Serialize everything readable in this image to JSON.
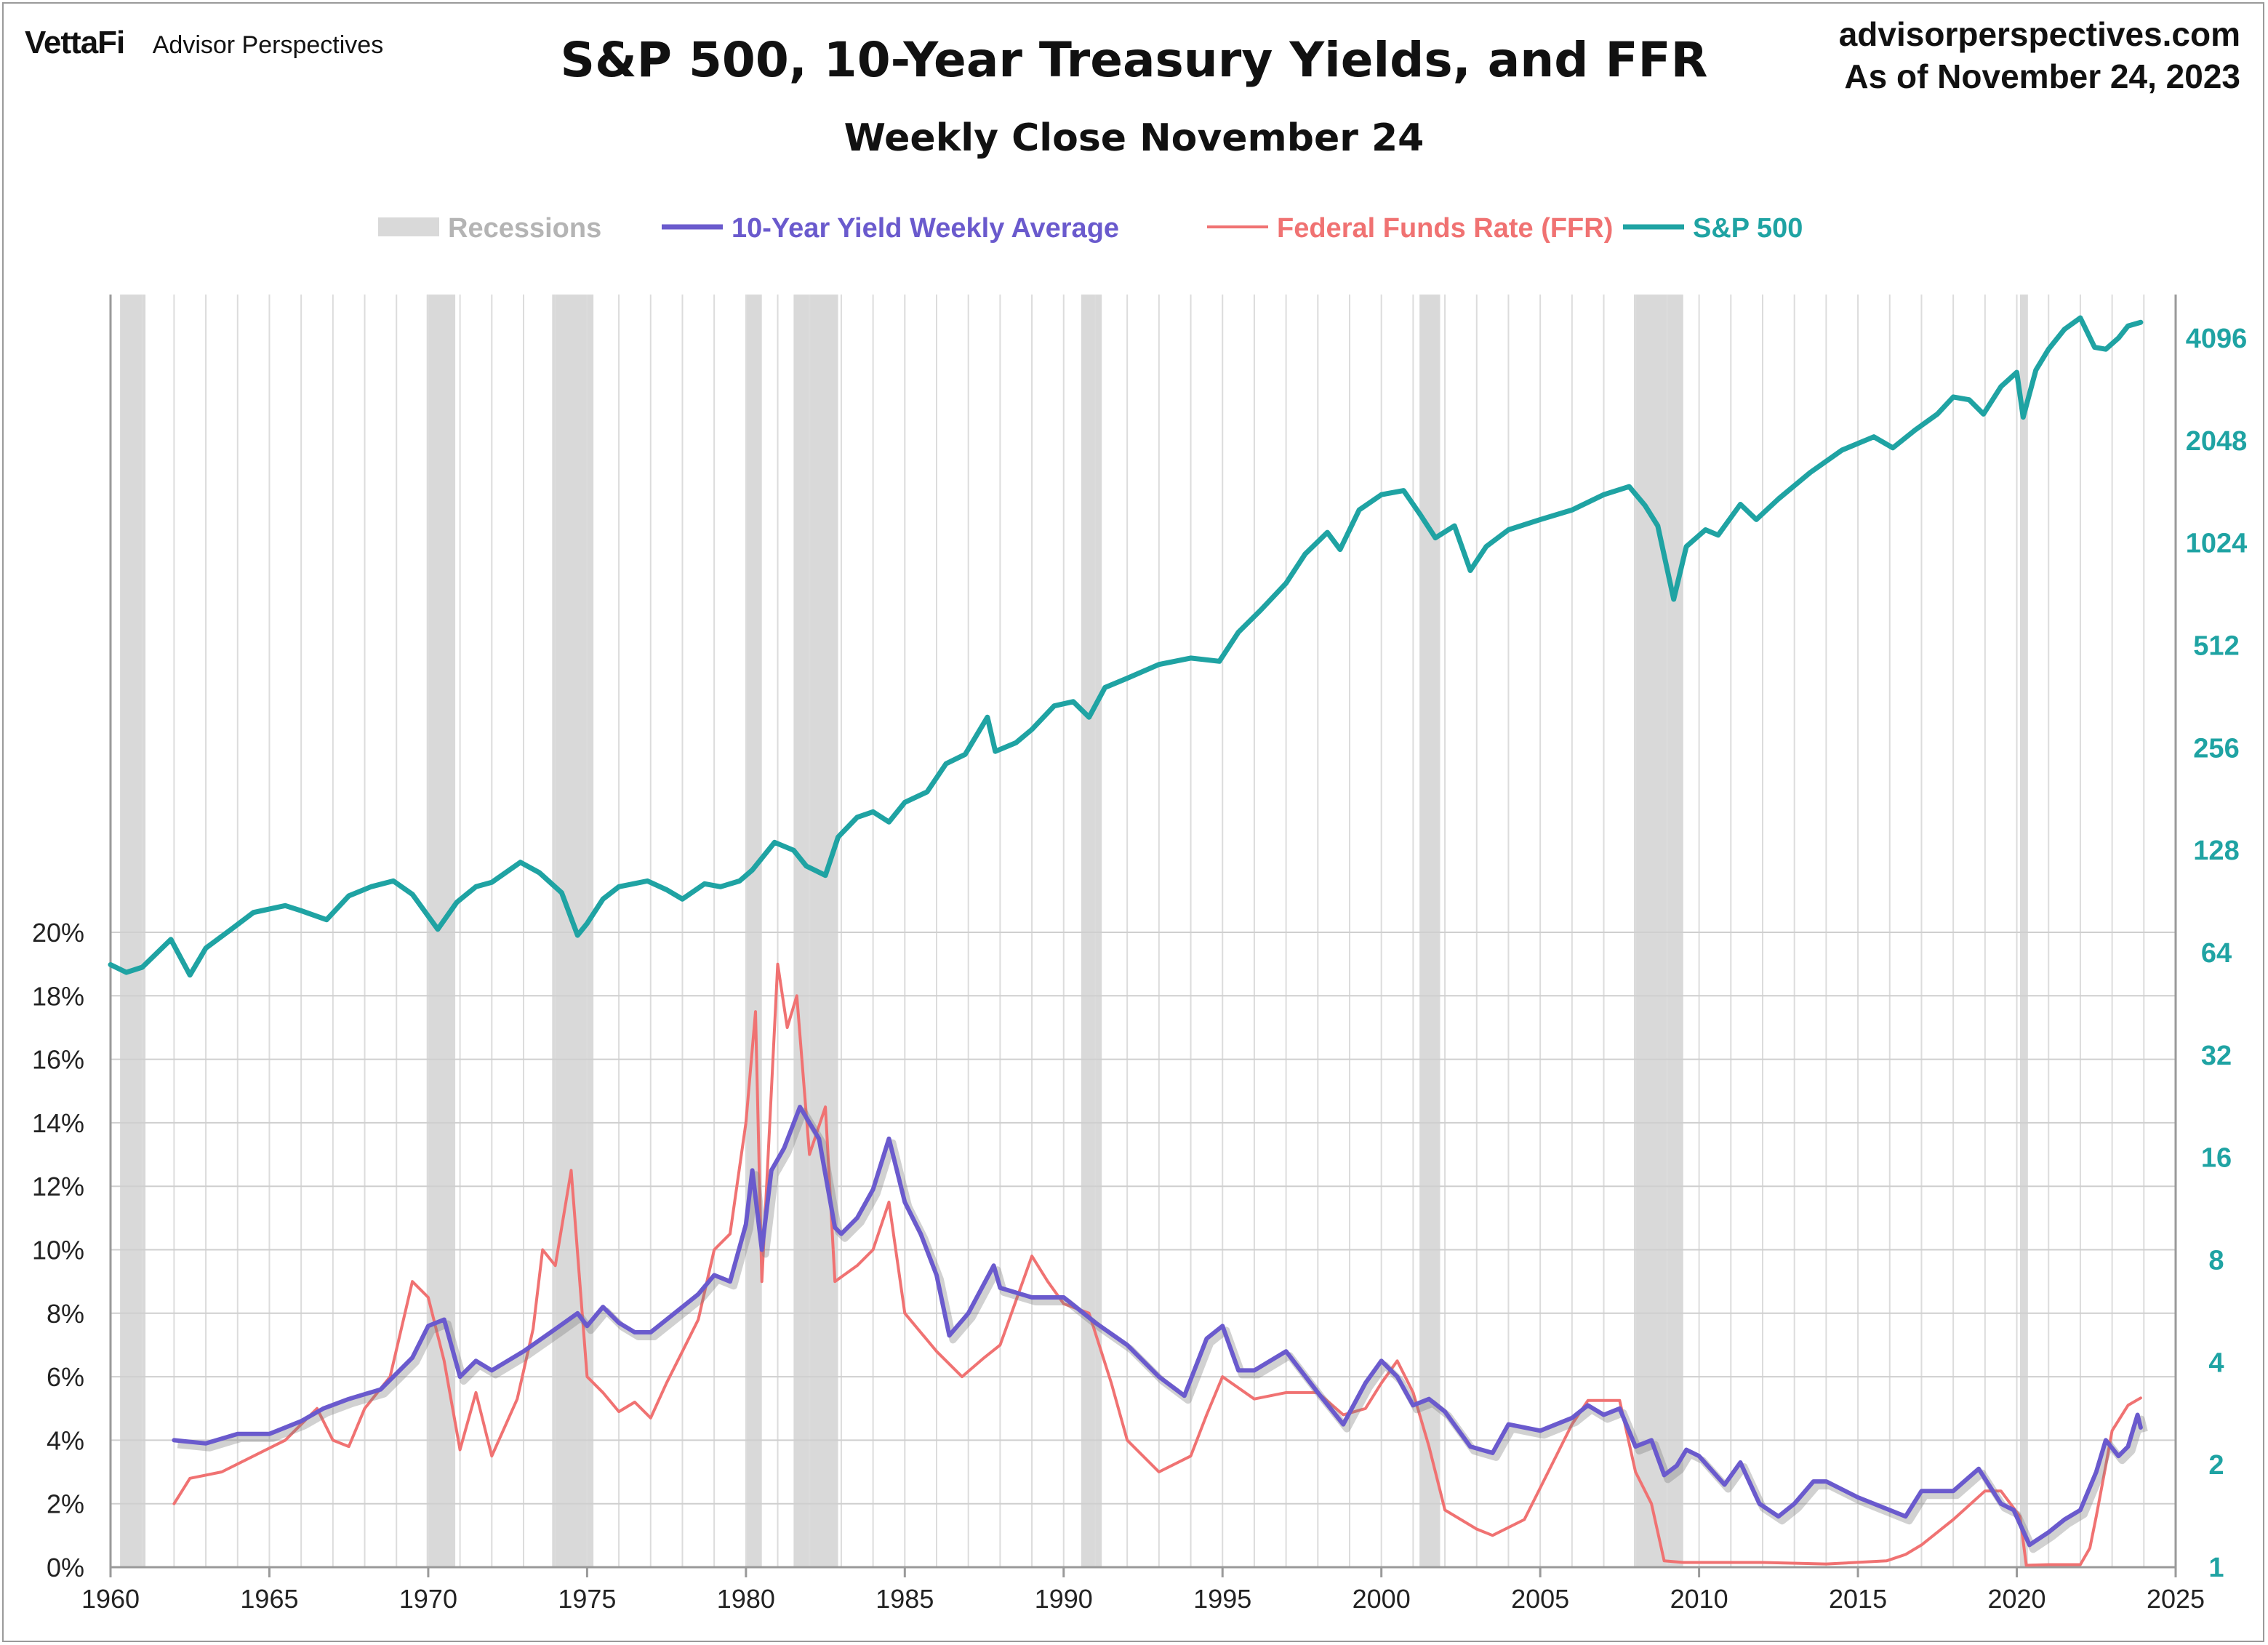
{
  "header": {
    "brand": "VettaFi",
    "brand_sub": "Advisor Perspectives",
    "site": "advisorperspectives.com",
    "asof": "As of November 24, 2023"
  },
  "chart_data": {
    "type": "line",
    "title": "S&P 500, 10-Year Treasury Yields, and FFR",
    "subtitle": "Weekly Close November 24",
    "x_range": [
      1960,
      2025
    ],
    "x_ticks": [
      "1960",
      "1965",
      "1970",
      "1975",
      "1980",
      "1985",
      "1990",
      "1995",
      "2000",
      "2005",
      "2010",
      "2015",
      "2020",
      "2025"
    ],
    "y_left_range": [
      0,
      20
    ],
    "y_left_ticks": [
      "0%",
      "2%",
      "4%",
      "6%",
      "8%",
      "10%",
      "12%",
      "14%",
      "16%",
      "18%",
      "20%"
    ],
    "y_right_log2_range": [
      1,
      4096
    ],
    "y_right_ticks": [
      "1",
      "2",
      "4",
      "8",
      "16",
      "32",
      "64",
      "128",
      "256",
      "512",
      "1024",
      "2048",
      "4096"
    ],
    "grid": true,
    "legend_position": "top",
    "colors": {
      "recession": "#d9d9d9",
      "yield": "#6a5acd",
      "ffr": "#f07272",
      "sp500": "#1fa3a3"
    },
    "legend": [
      {
        "name": "Recessions",
        "color": "#b4b4b4"
      },
      {
        "name": "10-Year Yield Weekly Average",
        "color": "#6a5acd"
      },
      {
        "name": "Federal Funds Rate (FFR)",
        "color": "#f07272"
      },
      {
        "name": "S&P 500",
        "color": "#1fa3a3"
      }
    ],
    "recessions": [
      [
        1960.3,
        1961.1
      ],
      [
        1969.95,
        1970.85
      ],
      [
        1973.9,
        1975.2
      ],
      [
        1980.0,
        1980.5
      ],
      [
        1981.5,
        1982.9
      ],
      [
        1990.55,
        1991.2
      ],
      [
        2001.2,
        2001.85
      ],
      [
        2007.95,
        2009.5
      ],
      [
        2020.1,
        2020.35
      ]
    ],
    "series": [
      {
        "name": "S&P 500",
        "axis": "right",
        "x": [
          1960.0,
          1960.5,
          1961.0,
          1961.9,
          1962.5,
          1963.0,
          1963.8,
          1964.5,
          1965.5,
          1966.0,
          1966.8,
          1967.5,
          1968.2,
          1968.9,
          1969.5,
          1970.3,
          1970.9,
          1971.5,
          1972.0,
          1972.9,
          1973.5,
          1974.2,
          1974.7,
          1975.0,
          1975.5,
          1976.0,
          1976.9,
          1977.5,
          1978.0,
          1978.7,
          1979.2,
          1979.8,
          1980.2,
          1980.9,
          1981.5,
          1981.9,
          1982.5,
          1982.9,
          1983.5,
          1984.0,
          1984.5,
          1985.0,
          1985.7,
          1986.3,
          1986.9,
          1987.6,
          1987.85,
          1988.5,
          1989.0,
          1989.7,
          1990.3,
          1990.8,
          1991.3,
          1992.0,
          1993.0,
          1994.0,
          1994.9,
          1995.5,
          1996.2,
          1997.0,
          1997.6,
          1998.3,
          1998.7,
          1999.3,
          2000.0,
          2000.7,
          2001.2,
          2001.7,
          2002.3,
          2002.8,
          2003.3,
          2004.0,
          2005.0,
          2006.0,
          2007.0,
          2007.8,
          2008.3,
          2008.7,
          2009.2,
          2009.6,
          2010.2,
          2010.6,
          2011.3,
          2011.8,
          2012.5,
          2013.5,
          2014.5,
          2015.5,
          2016.1,
          2016.8,
          2017.5,
          2018.0,
          2018.5,
          2018.95,
          2019.5,
          2020.0,
          2020.2,
          2020.6,
          2021.0,
          2021.5,
          2022.0,
          2022.45,
          2022.8,
          2023.2,
          2023.5,
          2023.9
        ],
        "values": [
          59,
          56,
          58,
          70,
          55,
          66,
          75,
          84,
          88,
          85,
          80,
          94,
          100,
          104,
          95,
          75,
          90,
          100,
          103,
          118,
          110,
          96,
          72,
          78,
          92,
          100,
          104,
          98,
          92,
          102,
          100,
          104,
          112,
          135,
          128,
          115,
          108,
          140,
          160,
          166,
          155,
          177,
          190,
          230,
          245,
          315,
          250,
          265,
          290,
          340,
          350,
          315,
          385,
          410,
          450,
          470,
          460,
          560,
          650,
          780,
          950,
          1100,
          980,
          1280,
          1420,
          1460,
          1250,
          1060,
          1150,
          850,
          1000,
          1120,
          1200,
          1280,
          1420,
          1500,
          1320,
          1150,
          700,
          1000,
          1120,
          1080,
          1330,
          1200,
          1380,
          1650,
          1920,
          2100,
          1950,
          2200,
          2450,
          2750,
          2700,
          2450,
          2950,
          3250,
          2400,
          3300,
          3800,
          4350,
          4700,
          3850,
          3800,
          4100,
          4450,
          4560
        ]
      },
      {
        "name": "10-Year Yield Weekly Average",
        "axis": "left",
        "x": [
          1962.0,
          1963.0,
          1964.0,
          1965.0,
          1966.0,
          1966.7,
          1967.5,
          1968.5,
          1969.5,
          1970.0,
          1970.5,
          1971.0,
          1971.5,
          1972.0,
          1973.0,
          1974.0,
          1974.7,
          1975.0,
          1975.5,
          1976.0,
          1976.5,
          1977.0,
          1978.0,
          1978.5,
          1979.0,
          1979.5,
          1980.0,
          1980.2,
          1980.5,
          1980.8,
          1981.2,
          1981.7,
          1982.0,
          1982.3,
          1982.8,
          1983.0,
          1983.5,
          1984.0,
          1984.5,
          1985.0,
          1985.5,
          1986.0,
          1986.4,
          1987.0,
          1987.8,
          1988.0,
          1989.0,
          1990.0,
          1991.0,
          1992.0,
          1993.0,
          1993.8,
          1994.5,
          1995.0,
          1995.5,
          1996.0,
          1997.0,
          1998.0,
          1998.8,
          1999.5,
          2000.0,
          2000.5,
          2001.0,
          2001.5,
          2002.0,
          2002.8,
          2003.5,
          2004.0,
          2005.0,
          2006.0,
          2006.5,
          2007.0,
          2007.5,
          2008.0,
          2008.5,
          2008.9,
          2009.3,
          2009.6,
          2010.0,
          2010.8,
          2011.3,
          2011.9,
          2012.5,
          2013.0,
          2013.6,
          2014.0,
          2015.0,
          2016.5,
          2017.0,
          2018.0,
          2018.8,
          2019.5,
          2019.9,
          2020.4,
          2021.0,
          2021.5,
          2022.0,
          2022.5,
          2022.8,
          2023.2,
          2023.5,
          2023.8,
          2023.9
        ],
        "values": [
          4.0,
          3.9,
          4.2,
          4.2,
          4.6,
          5.0,
          5.3,
          5.6,
          6.6,
          7.6,
          7.8,
          6.0,
          6.5,
          6.2,
          6.8,
          7.5,
          8.0,
          7.6,
          8.2,
          7.7,
          7.4,
          7.4,
          8.2,
          8.6,
          9.2,
          9.0,
          10.8,
          12.5,
          10.0,
          12.5,
          13.2,
          14.5,
          14.0,
          13.5,
          10.7,
          10.5,
          11.0,
          11.9,
          13.5,
          11.5,
          10.5,
          9.2,
          7.3,
          8.0,
          9.5,
          8.8,
          8.5,
          8.5,
          7.7,
          7.0,
          6.0,
          5.4,
          7.2,
          7.6,
          6.2,
          6.2,
          6.8,
          5.5,
          4.5,
          5.8,
          6.5,
          6.0,
          5.1,
          5.3,
          4.9,
          3.8,
          3.6,
          4.5,
          4.3,
          4.7,
          5.1,
          4.8,
          5.0,
          3.8,
          4.0,
          2.9,
          3.2,
          3.7,
          3.5,
          2.6,
          3.3,
          2.0,
          1.6,
          2.0,
          2.7,
          2.7,
          2.2,
          1.6,
          2.4,
          2.4,
          3.1,
          2.0,
          1.8,
          0.7,
          1.1,
          1.5,
          1.8,
          3.0,
          4.0,
          3.5,
          3.8,
          4.8,
          4.4
        ]
      },
      {
        "name": "Federal Funds Rate (FFR)",
        "axis": "left",
        "x": [
          1962.0,
          1962.5,
          1963.5,
          1964.5,
          1965.5,
          1966.5,
          1967.0,
          1967.5,
          1968.0,
          1968.8,
          1969.5,
          1970.0,
          1970.5,
          1971.0,
          1971.5,
          1972.0,
          1972.8,
          1973.3,
          1973.6,
          1974.0,
          1974.5,
          1975.0,
          1975.5,
          1976.0,
          1976.5,
          1977.0,
          1977.5,
          1978.0,
          1978.5,
          1979.0,
          1979.5,
          1980.0,
          1980.3,
          1980.5,
          1980.8,
          1981.0,
          1981.3,
          1981.6,
          1982.0,
          1982.5,
          1982.8,
          1983.5,
          1984.0,
          1984.5,
          1985.0,
          1986.0,
          1986.8,
          1987.5,
          1988.0,
          1989.0,
          1989.5,
          1990.0,
          1990.8,
          1991.5,
          1992.0,
          1993.0,
          1994.0,
          1994.5,
          1995.0,
          1996.0,
          1997.0,
          1998.0,
          1998.8,
          1999.5,
          2000.0,
          2000.5,
          2001.0,
          2001.5,
          2002.0,
          2003.0,
          2003.5,
          2004.5,
          2005.0,
          2006.0,
          2006.5,
          2007.5,
          2008.0,
          2008.5,
          2008.9,
          2009.5,
          2010.0,
          2012.0,
          2014.0,
          2015.9,
          2016.5,
          2017.0,
          2018.0,
          2019.0,
          2019.5,
          2020.1,
          2020.3,
          2021.0,
          2022.0,
          2022.3,
          2022.5,
          2022.8,
          2023.0,
          2023.5,
          2023.9
        ],
        "values": [
          2.0,
          2.8,
          3.0,
          3.5,
          4.0,
          5.0,
          4.0,
          3.8,
          5.0,
          6.0,
          9.0,
          8.5,
          6.5,
          3.7,
          5.5,
          3.5,
          5.3,
          7.5,
          10.0,
          9.5,
          12.5,
          6.0,
          5.5,
          4.9,
          5.2,
          4.7,
          5.8,
          6.8,
          7.8,
          10.0,
          10.5,
          14.0,
          17.5,
          9.0,
          15.0,
          19.0,
          17.0,
          18.0,
          13.0,
          14.5,
          9.0,
          9.5,
          10.0,
          11.5,
          8.0,
          6.8,
          6.0,
          6.6,
          7.0,
          9.8,
          9.0,
          8.3,
          8.0,
          5.8,
          4.0,
          3.0,
          3.5,
          4.8,
          6.0,
          5.3,
          5.5,
          5.5,
          4.8,
          5.0,
          5.8,
          6.5,
          5.5,
          3.8,
          1.8,
          1.2,
          1.0,
          1.5,
          2.5,
          4.5,
          5.25,
          5.25,
          3.0,
          2.0,
          0.2,
          0.15,
          0.15,
          0.15,
          0.1,
          0.2,
          0.4,
          0.7,
          1.5,
          2.4,
          2.4,
          1.6,
          0.06,
          0.08,
          0.08,
          0.6,
          1.6,
          3.2,
          4.3,
          5.1,
          5.33
        ]
      }
    ]
  }
}
